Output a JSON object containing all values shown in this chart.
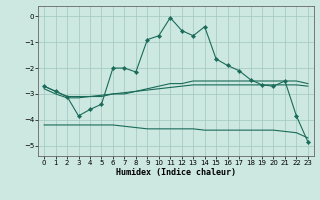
{
  "xlabel": "Humidex (Indice chaleur)",
  "bg_color": "#cce8e0",
  "grid_color": "#a0c8be",
  "line_color": "#1a6b5a",
  "xlim": [
    -0.5,
    23.5
  ],
  "ylim": [
    -5.4,
    0.4
  ],
  "yticks": [
    0,
    -1,
    -2,
    -3,
    -4,
    -5
  ],
  "xticks": [
    0,
    1,
    2,
    3,
    4,
    5,
    6,
    7,
    8,
    9,
    10,
    11,
    12,
    13,
    14,
    15,
    16,
    17,
    18,
    19,
    20,
    21,
    22,
    23
  ],
  "series": [
    {
      "x": [
        0,
        1,
        2,
        3,
        4,
        5,
        6,
        7,
        8,
        9,
        10,
        11,
        12,
        13,
        14,
        15,
        16,
        17,
        18,
        19,
        20,
        21,
        22,
        23
      ],
      "y": [
        -2.7,
        -2.9,
        -3.1,
        -3.1,
        -3.1,
        -3.1,
        -3.0,
        -3.0,
        -2.9,
        -2.8,
        -2.7,
        -2.6,
        -2.6,
        -2.5,
        -2.5,
        -2.5,
        -2.5,
        -2.5,
        -2.5,
        -2.5,
        -2.5,
        -2.5,
        -2.5,
        -2.6
      ],
      "marker": false
    },
    {
      "x": [
        0,
        1,
        2,
        3,
        4,
        5,
        6,
        7,
        8,
        9,
        10,
        11,
        12,
        13,
        14,
        15,
        16,
        17,
        18,
        19,
        20,
        21,
        22,
        23
      ],
      "y": [
        -4.2,
        -4.2,
        -4.2,
        -4.2,
        -4.2,
        -4.2,
        -4.2,
        -4.25,
        -4.3,
        -4.35,
        -4.35,
        -4.35,
        -4.35,
        -4.35,
        -4.4,
        -4.4,
        -4.4,
        -4.4,
        -4.4,
        -4.4,
        -4.4,
        -4.45,
        -4.5,
        -4.7
      ],
      "marker": false
    },
    {
      "x": [
        0,
        1,
        2,
        3,
        4,
        5,
        6,
        7,
        8,
        9,
        10,
        11,
        12,
        13,
        14,
        15,
        16,
        17,
        18,
        19,
        20,
        21,
        22,
        23
      ],
      "y": [
        -2.8,
        -3.0,
        -3.15,
        -3.15,
        -3.1,
        -3.05,
        -3.0,
        -2.95,
        -2.9,
        -2.85,
        -2.8,
        -2.75,
        -2.7,
        -2.65,
        -2.65,
        -2.65,
        -2.65,
        -2.65,
        -2.65,
        -2.65,
        -2.65,
        -2.65,
        -2.65,
        -2.7
      ],
      "marker": false
    },
    {
      "x": [
        0,
        1,
        2,
        3,
        4,
        5,
        6,
        7,
        8,
        9,
        10,
        11,
        12,
        13,
        14,
        15,
        16,
        17,
        18,
        19,
        20,
        21,
        22,
        23
      ],
      "y": [
        -2.7,
        -2.9,
        -3.1,
        -3.85,
        -3.6,
        -3.4,
        -2.0,
        -2.0,
        -2.15,
        -0.9,
        -0.75,
        -0.05,
        -0.55,
        -0.75,
        -0.4,
        -1.65,
        -1.9,
        -2.1,
        -2.45,
        -2.65,
        -2.7,
        -2.5,
        -3.85,
        -4.85
      ],
      "marker": true
    }
  ]
}
